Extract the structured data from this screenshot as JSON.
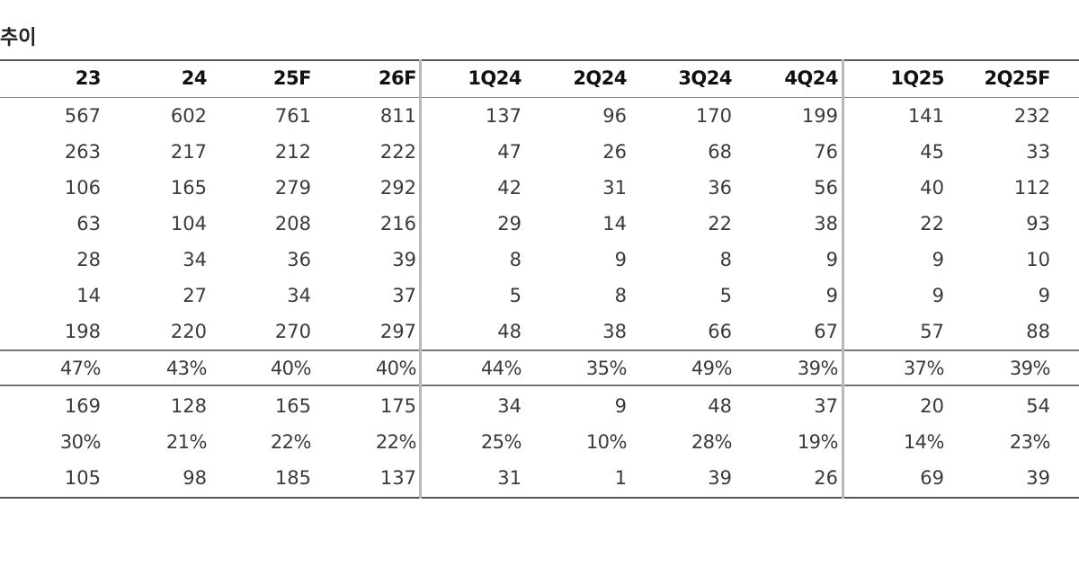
{
  "title": "추이",
  "headers": [
    "23",
    "24",
    "25F",
    "26F",
    "1Q24",
    "2Q24",
    "3Q24",
    "4Q24",
    "1Q25",
    "2Q25F"
  ],
  "rows": [
    [
      "567",
      "602",
      "761",
      "811",
      "137",
      "96",
      "170",
      "199",
      "141",
      "232"
    ],
    [
      "263",
      "217",
      "212",
      "222",
      "47",
      "26",
      "68",
      "76",
      "45",
      "33"
    ],
    [
      "106",
      "165",
      "279",
      "292",
      "42",
      "31",
      "36",
      "56",
      "40",
      "112"
    ],
    [
      "63",
      "104",
      "208",
      "216",
      "29",
      "14",
      "22",
      "38",
      "22",
      "93"
    ],
    [
      "28",
      "34",
      "36",
      "39",
      "8",
      "9",
      "8",
      "9",
      "9",
      "10"
    ],
    [
      "14",
      "27",
      "34",
      "37",
      "5",
      "8",
      "5",
      "9",
      "9",
      "9"
    ],
    [
      "198",
      "220",
      "270",
      "297",
      "48",
      "38",
      "66",
      "67",
      "57",
      "88"
    ],
    [
      "47%",
      "43%",
      "40%",
      "40%",
      "44%",
      "35%",
      "49%",
      "39%",
      "37%",
      "39%"
    ],
    [
      "169",
      "128",
      "165",
      "175",
      "34",
      "9",
      "48",
      "37",
      "20",
      "54"
    ],
    [
      "30%",
      "21%",
      "22%",
      "22%",
      "25%",
      "10%",
      "28%",
      "19%",
      "14%",
      "23%"
    ],
    [
      "105",
      "98",
      "185",
      "137",
      "31",
      "1",
      "39",
      "26",
      "69",
      "39"
    ]
  ]
}
